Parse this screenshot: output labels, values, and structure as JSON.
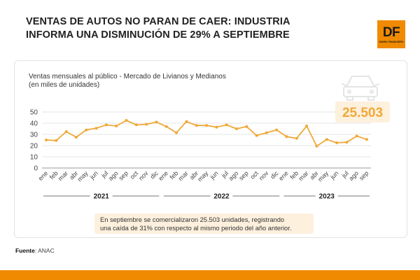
{
  "headline": {
    "line1": "VENTAS DE AUTOS NO PARAN DE CAER: INDUSTRIA",
    "line2": "INFORMA UNA DISMINUCIÓN DE 29% A SEPTIEMBRE"
  },
  "logo": {
    "text": "DF",
    "subtext": "DIARIO FINANCIERO"
  },
  "note": {
    "line1": "En septiembre se comercializaron 25.503 unidades, registrando",
    "line2": "una caída de 31% con respecto al mismo periodo del año anterior."
  },
  "source": {
    "label": "Fuente",
    "value": ": ANAC"
  },
  "colors": {
    "accent": "#f08a00",
    "line": "#f0a93a",
    "highlight_text": "#f0a93a",
    "highlight_bg": "#fdf0dd"
  },
  "chart_data": {
    "type": "line",
    "title": "Ventas mensuales al público - Mercado de Livianos y Medianos",
    "subtitle": "(en miles de unidades)",
    "icon": "car-icon",
    "highlight_label": "25.503",
    "ylim": [
      0,
      50
    ],
    "yticks": [
      0,
      10,
      20,
      30,
      40,
      50
    ],
    "grid": true,
    "categories": [
      "ene",
      "feb",
      "mar",
      "abr",
      "may",
      "jun",
      "jul",
      "ago",
      "sep",
      "oct",
      "nov",
      "dic",
      "ene",
      "feb",
      "mar",
      "abr",
      "may",
      "jun",
      "jul",
      "ago",
      "sep",
      "oct",
      "nov",
      "dic",
      "ene",
      "feb",
      "mar",
      "abr",
      "may",
      "jun",
      "jul",
      "ago",
      "sep"
    ],
    "years": [
      {
        "label": "2021",
        "start": 0,
        "end": 11
      },
      {
        "label": "2022",
        "start": 12,
        "end": 23
      },
      {
        "label": "2023",
        "start": 24,
        "end": 32
      }
    ],
    "series": [
      {
        "name": "Ventas",
        "values": [
          25,
          24.5,
          32.5,
          27.5,
          34,
          35.5,
          38.5,
          37.5,
          42.5,
          38.5,
          39,
          41,
          37,
          31.5,
          41.5,
          38,
          38,
          36.5,
          38.5,
          35,
          37,
          29,
          31.5,
          34,
          28,
          26.5,
          37.5,
          19.5,
          25.5,
          22.5,
          23,
          28.5,
          25.5
        ]
      }
    ]
  }
}
